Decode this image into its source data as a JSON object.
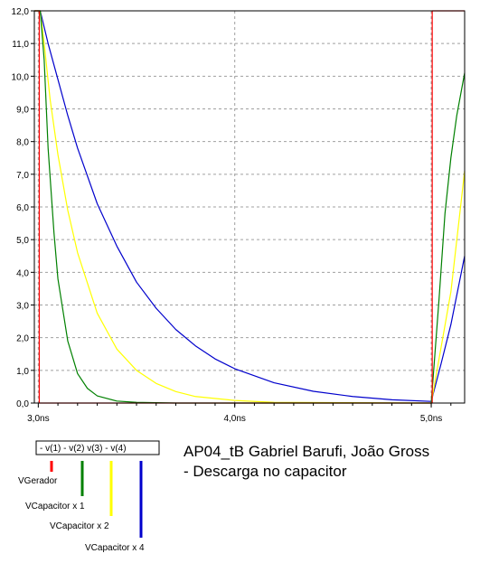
{
  "chart_data": {
    "type": "line",
    "title": "AP04_tB Gabriel Barufi, João Gross",
    "subtitle": "- Descarga no capacitor",
    "xlabel": "",
    "ylabel": "",
    "xlim": [
      2.98,
      5.17
    ],
    "ylim": [
      0,
      12
    ],
    "x_ticks": [
      3.0,
      4.0,
      5.0
    ],
    "x_tick_labels": [
      "3,0ns",
      "4,0ns",
      "5,0ns"
    ],
    "y_ticks": [
      0,
      1,
      2,
      3,
      4,
      5,
      6,
      7,
      8,
      9,
      10,
      11,
      12
    ],
    "y_tick_labels": [
      "0,0",
      "1,0",
      "2,0",
      "3,0",
      "4,0",
      "5,0",
      "6,0",
      "7,0",
      "8,0",
      "9,0",
      "10,0",
      "11,0",
      "12,0"
    ],
    "grid": true,
    "legend_header": "- v(1) - v(2)  v(3) - v(4)",
    "legend_placement": "bottom-left",
    "series": [
      {
        "name": "VGerador",
        "color": "#ff0000",
        "points": [
          [
            2.98,
            12.0
          ],
          [
            3.005,
            12.0
          ],
          [
            3.005,
            0.0
          ],
          [
            5.005,
            0.0
          ],
          [
            5.005,
            12.0
          ],
          [
            5.17,
            12.0
          ]
        ]
      },
      {
        "name": "VCapacitor x 1",
        "color": "#008000",
        "points": [
          [
            2.98,
            12.0
          ],
          [
            3.01,
            12.0
          ],
          [
            3.03,
            10.5
          ],
          [
            3.05,
            7.8
          ],
          [
            3.08,
            5.2
          ],
          [
            3.1,
            3.8
          ],
          [
            3.15,
            1.9
          ],
          [
            3.2,
            0.9
          ],
          [
            3.25,
            0.45
          ],
          [
            3.3,
            0.22
          ],
          [
            3.4,
            0.06
          ],
          [
            3.5,
            0.02
          ],
          [
            3.7,
            0.0
          ],
          [
            5.0,
            0.0
          ],
          [
            5.04,
            3.2
          ],
          [
            5.07,
            5.8
          ],
          [
            5.1,
            7.5
          ],
          [
            5.13,
            8.8
          ],
          [
            5.17,
            10.1
          ]
        ]
      },
      {
        "name": "VCapacitor x 2",
        "color": "#ffff00",
        "points": [
          [
            2.98,
            12.0
          ],
          [
            3.01,
            12.0
          ],
          [
            3.03,
            11.0
          ],
          [
            3.06,
            9.3
          ],
          [
            3.1,
            7.6
          ],
          [
            3.15,
            5.9
          ],
          [
            3.2,
            4.6
          ],
          [
            3.3,
            2.75
          ],
          [
            3.4,
            1.65
          ],
          [
            3.5,
            1.0
          ],
          [
            3.6,
            0.6
          ],
          [
            3.7,
            0.35
          ],
          [
            3.8,
            0.2
          ],
          [
            4.0,
            0.08
          ],
          [
            4.2,
            0.02
          ],
          [
            5.0,
            0.0
          ],
          [
            5.05,
            1.7
          ],
          [
            5.1,
            3.4
          ],
          [
            5.17,
            7.1
          ]
        ]
      },
      {
        "name": "VCapacitor x 4",
        "color": "#0000cc",
        "points": [
          [
            2.98,
            12.0
          ],
          [
            3.01,
            12.0
          ],
          [
            3.05,
            11.0
          ],
          [
            3.1,
            9.9
          ],
          [
            3.15,
            8.8
          ],
          [
            3.2,
            7.8
          ],
          [
            3.3,
            6.1
          ],
          [
            3.4,
            4.8
          ],
          [
            3.5,
            3.7
          ],
          [
            3.6,
            2.9
          ],
          [
            3.7,
            2.25
          ],
          [
            3.8,
            1.75
          ],
          [
            3.9,
            1.35
          ],
          [
            4.0,
            1.05
          ],
          [
            4.2,
            0.62
          ],
          [
            4.4,
            0.36
          ],
          [
            4.6,
            0.2
          ],
          [
            4.8,
            0.1
          ],
          [
            5.0,
            0.05
          ],
          [
            5.05,
            1.2
          ],
          [
            5.1,
            2.4
          ],
          [
            5.17,
            4.5
          ]
        ]
      }
    ]
  }
}
